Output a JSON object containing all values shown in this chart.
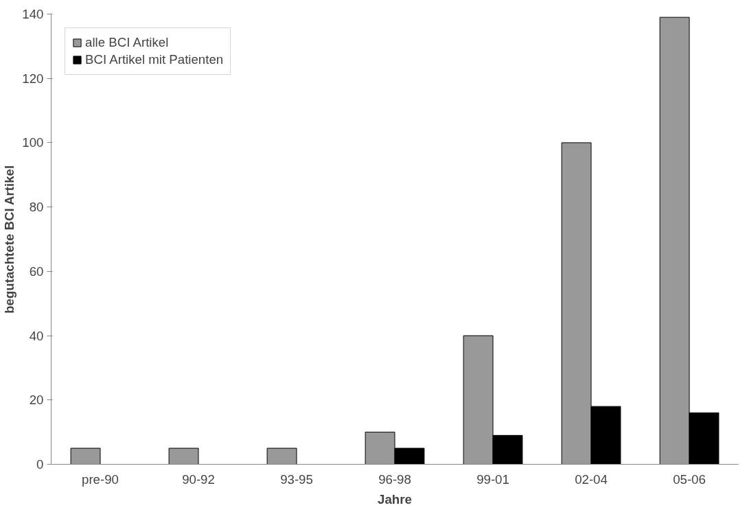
{
  "chart_data": {
    "type": "bar",
    "xlabel": "Jahre",
    "ylabel": "begutachtete BCI Artikel",
    "categories": [
      "pre-90",
      "90-92",
      "93-95",
      "96-98",
      "99-01",
      "02-04",
      "05-06"
    ],
    "series": [
      {
        "name": "alle BCI Artikel",
        "color": "#999999",
        "values": [
          5,
          5,
          5,
          10,
          40,
          100,
          139
        ]
      },
      {
        "name": "BCI Artikel mit Patienten",
        "color": "#000000",
        "values": [
          null,
          null,
          null,
          5,
          9,
          18,
          16
        ]
      }
    ],
    "ylim": [
      0,
      140
    ],
    "yticks": [
      0,
      20,
      40,
      60,
      80,
      100,
      120,
      140
    ],
    "grid": false,
    "legend": "top left"
  }
}
